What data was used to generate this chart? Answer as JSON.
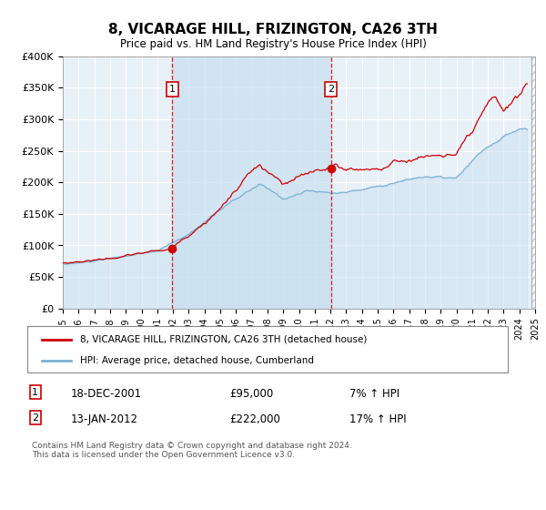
{
  "title": "8, VICARAGE HILL, FRIZINGTON, CA26 3TH",
  "subtitle": "Price paid vs. HM Land Registry's House Price Index (HPI)",
  "bg_color": "#e8f0f8",
  "x_start_year": 1995,
  "x_end_year": 2025,
  "y_min": 0,
  "y_max": 400000,
  "y_ticks": [
    0,
    50000,
    100000,
    150000,
    200000,
    250000,
    300000,
    350000,
    400000
  ],
  "y_tick_labels": [
    "£0",
    "£50K",
    "£100K",
    "£150K",
    "£200K",
    "£250K",
    "£300K",
    "£350K",
    "£400K"
  ],
  "sale1_date": "18-DEC-2001",
  "sale1_price": 95000,
  "sale1_year": 2001.96,
  "sale2_date": "13-JAN-2012",
  "sale2_price": 222000,
  "sale2_year": 2012.04,
  "sale1_hpi_text": "7% ↑ HPI",
  "sale2_hpi_text": "17% ↑ HPI",
  "red_line_color": "#cc0000",
  "blue_line_color": "#7ab0d4",
  "shade_color": "#c8dff0",
  "legend_label_red": "8, VICARAGE HILL, FRIZINGTON, CA26 3TH (detached house)",
  "legend_label_blue": "HPI: Average price, detached house, Cumberland",
  "footer": "Contains HM Land Registry data © Crown copyright and database right 2024.\nThis data is licensed under the Open Government Licence v3.0."
}
